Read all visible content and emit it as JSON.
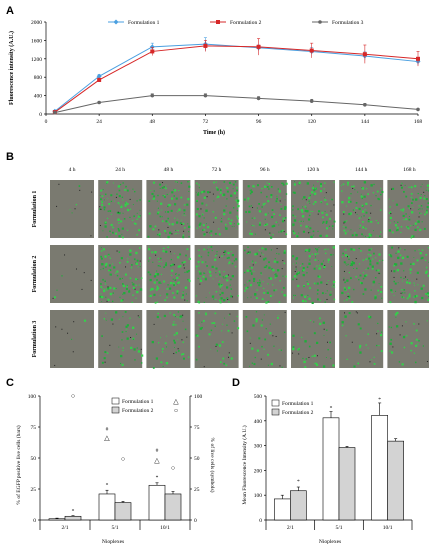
{
  "panels": {
    "a": "A",
    "b": "B",
    "c": "C",
    "d": "D"
  },
  "chart_data": [
    {
      "type": "line",
      "panel": "A",
      "xlabel": "Time (h)",
      "ylabel": "Fluorescence intensity (A.U.)",
      "x": [
        4,
        24,
        48,
        72,
        96,
        120,
        144,
        168
      ],
      "xticks": [
        0,
        24,
        48,
        72,
        96,
        120,
        144,
        168
      ],
      "yticks": [
        0,
        400,
        800,
        1200,
        1600,
        2000
      ],
      "xlim": [
        0,
        168
      ],
      "ylim": [
        0,
        2000
      ],
      "grid": false,
      "legend_position": "top",
      "series": [
        {
          "name": "Formulation 1",
          "color": "#4a9fe0",
          "marker": "diamond",
          "values": [
            60,
            820,
            1460,
            1520,
            1440,
            1360,
            1260,
            1140
          ],
          "errors": [
            20,
            40,
            80,
            140,
            60,
            90,
            90,
            80
          ]
        },
        {
          "name": "Formulation 2",
          "color": "#d62728",
          "marker": "square",
          "values": [
            40,
            740,
            1360,
            1480,
            1460,
            1380,
            1300,
            1200
          ],
          "errors": [
            20,
            40,
            90,
            120,
            180,
            160,
            200,
            160
          ]
        },
        {
          "name": "Formulation 3",
          "color": "#666666",
          "marker": "circle",
          "values": [
            30,
            250,
            400,
            400,
            340,
            280,
            200,
            100
          ],
          "errors": [
            10,
            20,
            40,
            40,
            40,
            40,
            30,
            20
          ]
        }
      ]
    },
    {
      "type": "bar",
      "panel": "C",
      "xlabel": "Nioplexes",
      "ylabel": "% of EGFP positive live cells (bars)",
      "y2label": "% of live cells (symbols)",
      "categories": [
        "2/1",
        "5/1",
        "10/1"
      ],
      "yticks": [
        0,
        25,
        50,
        75,
        100
      ],
      "ylim": [
        0,
        100
      ],
      "legend_position": "top-right",
      "series": [
        {
          "name": "Formulation 1",
          "symbol": "△",
          "color": "#ffffff",
          "values": [
            1,
            21,
            28
          ],
          "errors": [
            0.5,
            3,
            2
          ],
          "live_cells": [
            null,
            66,
            48
          ]
        },
        {
          "name": "Formulation 2",
          "symbol": "○",
          "color": "#d3d3d3",
          "values": [
            3,
            14,
            21
          ],
          "errors": [
            0.5,
            1,
            2
          ],
          "live_cells": [
            100,
            49,
            42
          ]
        }
      ],
      "annotations": [
        "*",
        "*",
        "#",
        "*",
        "#"
      ]
    },
    {
      "type": "bar",
      "panel": "D",
      "xlabel": "Nioplexes",
      "ylabel": "Mean Fluorescence Intensity (A.U.)",
      "categories": [
        "2/1",
        "5/1",
        "10/1"
      ],
      "yticks": [
        0,
        100,
        200,
        300,
        400,
        500
      ],
      "ylim": [
        0,
        500
      ],
      "legend_position": "top-left",
      "series": [
        {
          "name": "Formulation 1",
          "color": "#ffffff",
          "values": [
            85,
            412,
            422
          ],
          "errors": [
            15,
            25,
            50
          ]
        },
        {
          "name": "Formulation 2",
          "color": "#d3d3d3",
          "values": [
            118,
            292,
            318
          ],
          "errors": [
            15,
            5,
            10
          ]
        }
      ],
      "annotations": [
        "*",
        "*",
        "*"
      ]
    }
  ],
  "micrographs": {
    "columns": [
      "4 h",
      "24 h",
      "48 h",
      "72 h",
      "96 h",
      "120 h",
      "144 h",
      "168 h"
    ],
    "rows": [
      "Formulation 1",
      "Formulation 2",
      "Formulation 3"
    ],
    "green_density": [
      [
        0.04,
        0.85,
        0.9,
        0.9,
        0.85,
        0.9,
        0.85,
        0.8
      ],
      [
        0.03,
        0.9,
        0.95,
        0.95,
        0.9,
        0.9,
        0.85,
        0.8
      ],
      [
        0.02,
        0.35,
        0.4,
        0.35,
        0.3,
        0.3,
        0.25,
        0.25
      ]
    ]
  }
}
